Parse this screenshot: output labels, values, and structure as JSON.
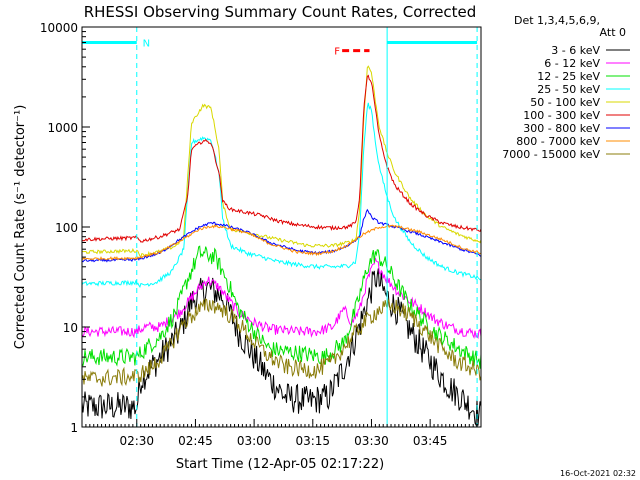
{
  "chart_data": {
    "type": "line",
    "title": "RHESSI Observing Summary Count Rates, Corrected",
    "xlabel": "Start Time (12-Apr-05 02:17:22)",
    "ylabel": "Corrected Count Rate (s⁻¹ detector⁻¹)",
    "y_scale": "log",
    "ylim": [
      1,
      10000
    ],
    "xlim_minutes": [
      0,
      102
    ],
    "x_ticks": [
      {
        "t": 14,
        "label": "02:30"
      },
      {
        "t": 29,
        "label": "02:45"
      },
      {
        "t": 44,
        "label": "03:00"
      },
      {
        "t": 59,
        "label": "03:15"
      },
      {
        "t": 74,
        "label": "03:30"
      },
      {
        "t": 89,
        "label": "03:45"
      }
    ],
    "y_ticks": [
      {
        "v": 1,
        "label": "1"
      },
      {
        "v": 10,
        "label": "10"
      },
      {
        "v": 100,
        "label": "100"
      },
      {
        "v": 1000,
        "label": "1000"
      },
      {
        "v": 10000,
        "label": "10000"
      }
    ],
    "legend_header": [
      "Det 1,3,4,5,6,9,",
      "Att 0"
    ],
    "legend_position": "right",
    "series": [
      {
        "name": "3 - 6 keV",
        "color": "#000000",
        "noise": 0.35,
        "points": [
          [
            0,
            1.6
          ],
          [
            14,
            1.6
          ],
          [
            15,
            3
          ],
          [
            20,
            5
          ],
          [
            25,
            9
          ],
          [
            28,
            18
          ],
          [
            32,
            25
          ],
          [
            36,
            20
          ],
          [
            40,
            9
          ],
          [
            44,
            5
          ],
          [
            48,
            3
          ],
          [
            52,
            2
          ],
          [
            58,
            1.8
          ],
          [
            63,
            2
          ],
          [
            67,
            4
          ],
          [
            70,
            8
          ],
          [
            73,
            18
          ],
          [
            75,
            32
          ],
          [
            78,
            20
          ],
          [
            81,
            14
          ],
          [
            84,
            9
          ],
          [
            87,
            6
          ],
          [
            90,
            4
          ],
          [
            94,
            2.5
          ],
          [
            98,
            1.8
          ],
          [
            102,
            1.3
          ]
        ]
      },
      {
        "name": "6 - 12 keV",
        "color": "#ff00ff",
        "noise": 0.12,
        "points": [
          [
            0,
            9
          ],
          [
            14,
            9
          ],
          [
            16,
            10
          ],
          [
            20,
            10
          ],
          [
            25,
            14
          ],
          [
            29,
            22
          ],
          [
            32,
            30
          ],
          [
            35,
            25
          ],
          [
            40,
            14
          ],
          [
            44,
            11
          ],
          [
            48,
            9.5
          ],
          [
            55,
            9
          ],
          [
            60,
            9
          ],
          [
            64,
            10
          ],
          [
            67,
            15
          ],
          [
            69,
            11
          ],
          [
            71,
            15
          ],
          [
            73,
            30
          ],
          [
            75,
            45
          ],
          [
            78,
            30
          ],
          [
            81,
            22
          ],
          [
            84,
            18
          ],
          [
            87,
            15
          ],
          [
            90,
            12
          ],
          [
            94,
            10
          ],
          [
            98,
            9
          ],
          [
            102,
            8.5
          ]
        ]
      },
      {
        "name": "12 - 25 keV",
        "color": "#00e000",
        "noise": 0.2,
        "points": [
          [
            0,
            5
          ],
          [
            14,
            5
          ],
          [
            16,
            6
          ],
          [
            20,
            8
          ],
          [
            24,
            14
          ],
          [
            27,
            30
          ],
          [
            30,
            55
          ],
          [
            34,
            50
          ],
          [
            37,
            30
          ],
          [
            40,
            15
          ],
          [
            44,
            9
          ],
          [
            48,
            6
          ],
          [
            55,
            5.5
          ],
          [
            62,
            5
          ],
          [
            67,
            7
          ],
          [
            70,
            15
          ],
          [
            73,
            40
          ],
          [
            75,
            55
          ],
          [
            78,
            40
          ],
          [
            81,
            25
          ],
          [
            84,
            16
          ],
          [
            87,
            12
          ],
          [
            90,
            9
          ],
          [
            94,
            7
          ],
          [
            98,
            5.5
          ],
          [
            102,
            4.5
          ]
        ]
      },
      {
        "name": "25 - 50 keV",
        "color": "#00ffff",
        "noise": 0.05,
        "points": [
          [
            0,
            27
          ],
          [
            14,
            28
          ],
          [
            15,
            26
          ],
          [
            19,
            28
          ],
          [
            23,
            36
          ],
          [
            26,
            60
          ],
          [
            27,
            200
          ],
          [
            28,
            700
          ],
          [
            31,
            780
          ],
          [
            33,
            740
          ],
          [
            35,
            350
          ],
          [
            36,
            120
          ],
          [
            38,
            65
          ],
          [
            42,
            55
          ],
          [
            46,
            50
          ],
          [
            50,
            45
          ],
          [
            55,
            42
          ],
          [
            60,
            40
          ],
          [
            65,
            40
          ],
          [
            68,
            41
          ],
          [
            70,
            45
          ],
          [
            71,
            90
          ],
          [
            72,
            600
          ],
          [
            73,
            1700
          ],
          [
            74,
            1500
          ],
          [
            75,
            700
          ],
          [
            76,
            400
          ],
          [
            78,
            200
          ],
          [
            80,
            120
          ],
          [
            84,
            70
          ],
          [
            88,
            50
          ],
          [
            92,
            40
          ],
          [
            96,
            35
          ],
          [
            100,
            32
          ],
          [
            102,
            30
          ]
        ]
      },
      {
        "name": "50 - 100 keV",
        "color": "#d8d800",
        "noise": 0.04,
        "points": [
          [
            0,
            56
          ],
          [
            14,
            58
          ],
          [
            15,
            52
          ],
          [
            20,
            57
          ],
          [
            24,
            65
          ],
          [
            26,
            80
          ],
          [
            27,
            300
          ],
          [
            28,
            1100
          ],
          [
            31,
            1650
          ],
          [
            33,
            1550
          ],
          [
            35,
            600
          ],
          [
            36,
            170
          ],
          [
            38,
            95
          ],
          [
            44,
            85
          ],
          [
            50,
            75
          ],
          [
            58,
            65
          ],
          [
            64,
            65
          ],
          [
            68,
            70
          ],
          [
            70,
            75
          ],
          [
            71,
            150
          ],
          [
            72,
            1200
          ],
          [
            73,
            4200
          ],
          [
            74,
            3500
          ],
          [
            75,
            1800
          ],
          [
            76,
            1000
          ],
          [
            78,
            550
          ],
          [
            80,
            350
          ],
          [
            84,
            190
          ],
          [
            88,
            130
          ],
          [
            92,
            100
          ],
          [
            96,
            85
          ],
          [
            100,
            75
          ],
          [
            102,
            72
          ]
        ]
      },
      {
        "name": "100 - 300 keV",
        "color": "#e00000",
        "noise": 0.04,
        "points": [
          [
            0,
            75
          ],
          [
            14,
            78
          ],
          [
            15,
            72
          ],
          [
            20,
            80
          ],
          [
            25,
            95
          ],
          [
            27,
            200
          ],
          [
            28,
            600
          ],
          [
            31,
            730
          ],
          [
            33,
            700
          ],
          [
            35,
            350
          ],
          [
            36,
            180
          ],
          [
            38,
            150
          ],
          [
            42,
            140
          ],
          [
            46,
            130
          ],
          [
            50,
            115
          ],
          [
            55,
            105
          ],
          [
            60,
            100
          ],
          [
            64,
            98
          ],
          [
            68,
            100
          ],
          [
            70,
            110
          ],
          [
            71,
            200
          ],
          [
            72,
            1500
          ],
          [
            73,
            3300
          ],
          [
            74,
            2800
          ],
          [
            75,
            1500
          ],
          [
            76,
            800
          ],
          [
            78,
            400
          ],
          [
            80,
            260
          ],
          [
            84,
            170
          ],
          [
            88,
            130
          ],
          [
            92,
            110
          ],
          [
            96,
            100
          ],
          [
            100,
            95
          ],
          [
            102,
            92
          ]
        ]
      },
      {
        "name": "300 - 800 keV",
        "color": "#0000ff",
        "noise": 0.03,
        "points": [
          [
            0,
            46
          ],
          [
            14,
            47
          ],
          [
            20,
            55
          ],
          [
            25,
            75
          ],
          [
            30,
            100
          ],
          [
            33,
            110
          ],
          [
            36,
            105
          ],
          [
            42,
            90
          ],
          [
            48,
            70
          ],
          [
            55,
            58
          ],
          [
            60,
            55
          ],
          [
            64,
            57
          ],
          [
            68,
            65
          ],
          [
            71,
            80
          ],
          [
            72,
            120
          ],
          [
            73,
            150
          ],
          [
            74,
            125
          ],
          [
            76,
            110
          ],
          [
            80,
            100
          ],
          [
            86,
            85
          ],
          [
            92,
            70
          ],
          [
            98,
            58
          ],
          [
            102,
            52
          ]
        ]
      },
      {
        "name": "800 - 7000 keV",
        "color": "#ff8c00",
        "noise": 0.03,
        "points": [
          [
            0,
            48
          ],
          [
            14,
            49
          ],
          [
            20,
            56
          ],
          [
            25,
            72
          ],
          [
            30,
            95
          ],
          [
            33,
            102
          ],
          [
            36,
            100
          ],
          [
            42,
            88
          ],
          [
            48,
            68
          ],
          [
            55,
            56
          ],
          [
            60,
            54
          ],
          [
            64,
            57
          ],
          [
            68,
            66
          ],
          [
            72,
            85
          ],
          [
            76,
            100
          ],
          [
            80,
            102
          ],
          [
            86,
            90
          ],
          [
            92,
            75
          ],
          [
            98,
            60
          ],
          [
            102,
            55
          ]
        ]
      },
      {
        "name": "7000 - 15000 keV",
        "color": "#8b7d0b",
        "noise": 0.2,
        "points": [
          [
            0,
            3
          ],
          [
            14,
            3.2
          ],
          [
            18,
            4
          ],
          [
            22,
            6
          ],
          [
            26,
            11
          ],
          [
            30,
            15
          ],
          [
            33,
            17
          ],
          [
            36,
            15
          ],
          [
            40,
            11
          ],
          [
            44,
            7
          ],
          [
            48,
            5
          ],
          [
            52,
            4
          ],
          [
            56,
            3.8
          ],
          [
            60,
            3.7
          ],
          [
            64,
            4.5
          ],
          [
            68,
            7
          ],
          [
            72,
            11
          ],
          [
            76,
            15
          ],
          [
            80,
            16
          ],
          [
            84,
            13
          ],
          [
            88,
            9
          ],
          [
            92,
            6
          ],
          [
            96,
            4.5
          ],
          [
            100,
            3.8
          ],
          [
            102,
            3.5
          ]
        ]
      }
    ],
    "vertical_markers": [
      {
        "t": 14,
        "color": "#00ffff",
        "style": "dashed"
      },
      {
        "t": 78,
        "color": "#00ffff",
        "style": "solid"
      },
      {
        "t": 101,
        "color": "#00ffff",
        "style": "dashed"
      }
    ],
    "night_bars": [
      {
        "t0": 0,
        "t1": 14,
        "y": 7000,
        "color": "#00ffff"
      },
      {
        "t0": 78,
        "t1": 101,
        "y": 7000,
        "color": "#00ffff"
      }
    ],
    "annotations": [
      {
        "text": "N",
        "t": 15.5,
        "y": 7000,
        "color": "#00ffff"
      },
      {
        "text": "F",
        "t": 64.5,
        "y": 5800,
        "color": "#ff0000"
      }
    ],
    "flare_bar": {
      "t0": 66.5,
      "t1": 73.5,
      "y": 5800,
      "color": "#ff0000"
    }
  },
  "footer": {
    "timestamp": "16-Oct-2021 02:32"
  }
}
